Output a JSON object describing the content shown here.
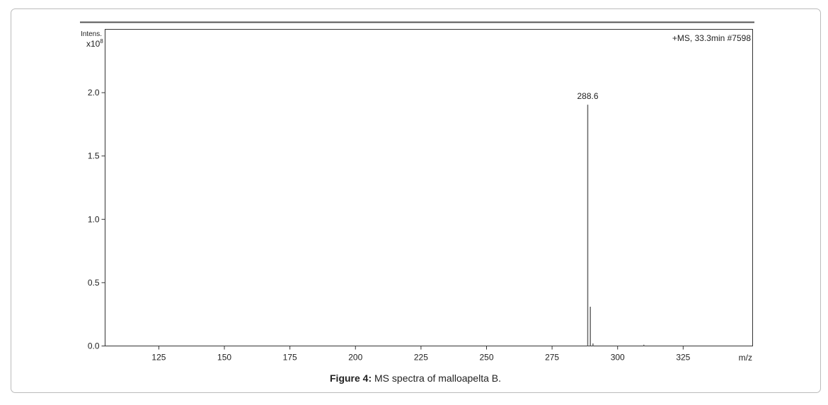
{
  "chart_data": {
    "type": "stem",
    "subtitle": "+MS, 33.3min #7598",
    "ylabel": "Intens.",
    "y_multiplier": "x10",
    "y_multiplier_exponent": "8",
    "xlabel": "m/z",
    "caption_bold": "Figure 4:",
    "caption": "MS spectra of malloapelta B.",
    "xlim": [
      104.5,
      351.5
    ],
    "ylim": [
      0,
      2.5
    ],
    "xticks": [
      125,
      150,
      175,
      200,
      225,
      250,
      275,
      300,
      325
    ],
    "yticks": [
      {
        "value": 0,
        "label": "0.0"
      },
      0.5,
      {
        "value": 1,
        "label": "1.0"
      },
      1.5,
      {
        "value": 2,
        "label": "2.0"
      }
    ],
    "series": [
      {
        "color": "#666666",
        "x": [
          288.6,
          289.6,
          290.6,
          310.0
        ],
        "values": [
          1.905,
          0.31,
          0.02,
          0.01
        ]
      }
    ],
    "annotations": [
      {
        "text": "288.6",
        "x": 288.6,
        "y": 1.905
      }
    ]
  }
}
